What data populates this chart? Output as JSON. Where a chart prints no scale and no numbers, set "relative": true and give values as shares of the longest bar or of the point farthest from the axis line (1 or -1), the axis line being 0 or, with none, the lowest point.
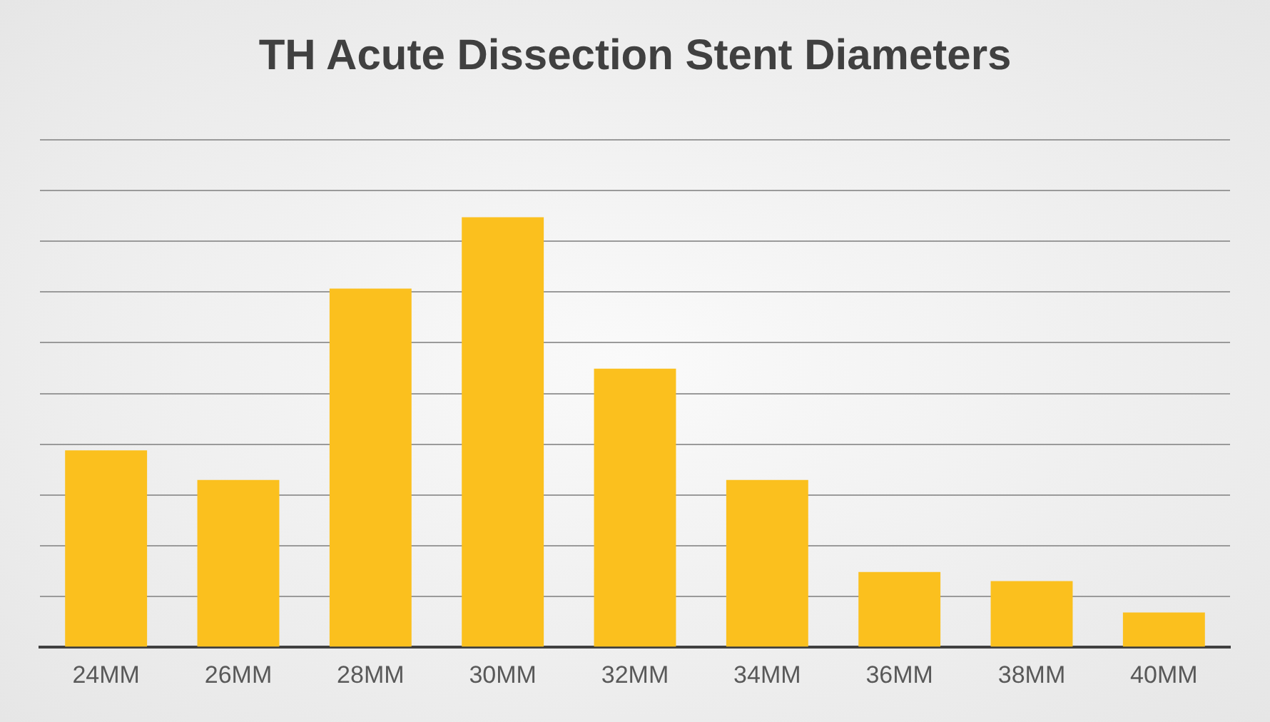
{
  "chart_data": {
    "type": "bar",
    "title": "TH Acute Dissection Stent Diameters",
    "categories": [
      "24MM",
      "26MM",
      "28MM",
      "30MM",
      "32MM",
      "34MM",
      "36MM",
      "38MM",
      "40MM"
    ],
    "values": [
      0.458,
      0.389,
      0.834,
      1,
      0.648,
      0.389,
      0.175,
      0.154,
      0.081
    ],
    "color": "#fbc01e",
    "relative": true,
    "grid": "y"
  }
}
